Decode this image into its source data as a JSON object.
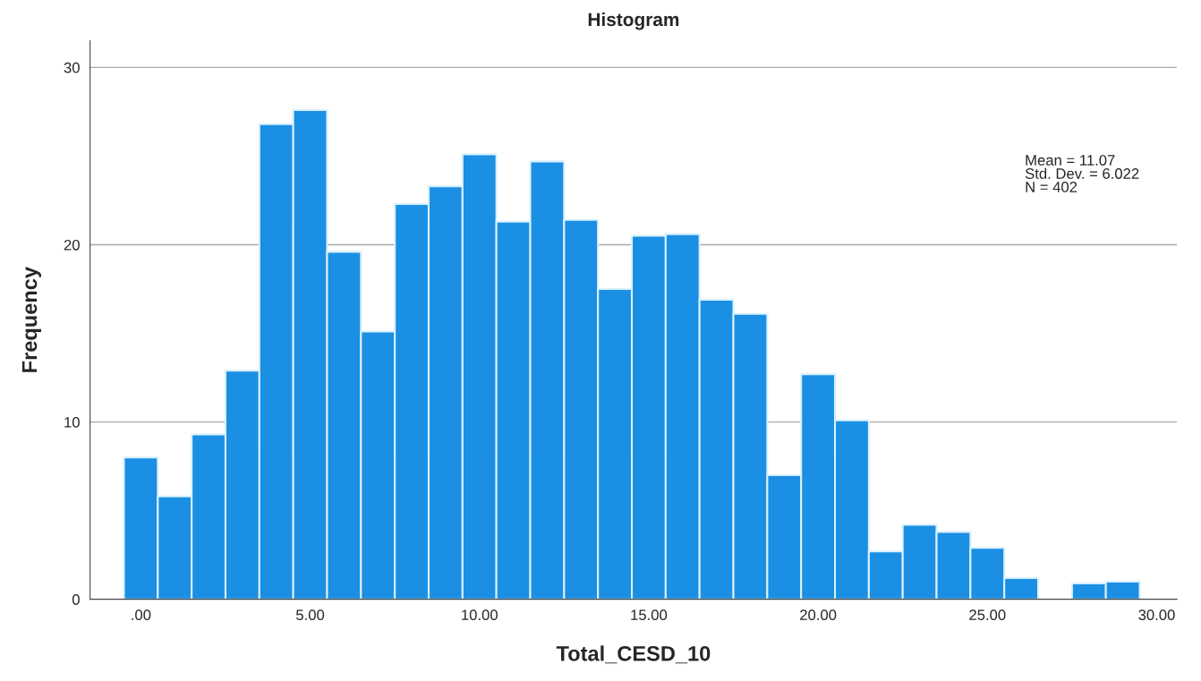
{
  "chart_data": {
    "type": "histogram",
    "title": "Histogram",
    "xlabel": "Total_CESD_10",
    "ylabel": "Frequency",
    "bins": [
      -0.5,
      0.5,
      1.5,
      2.5,
      3.5,
      4.5,
      5.5,
      6.5,
      7.5,
      8.5,
      9.5,
      10.5,
      11.5,
      12.5,
      13.5,
      14.5,
      15.5,
      16.5,
      17.5,
      18.5,
      19.5,
      20.5,
      21.5,
      22.5,
      23.5,
      24.5,
      25.5,
      26.5,
      27.5,
      28.5,
      29.5
    ],
    "values": [
      8.0,
      5.8,
      9.3,
      12.9,
      26.8,
      27.6,
      19.6,
      15.1,
      22.3,
      23.3,
      25.1,
      21.3,
      24.7,
      21.4,
      17.5,
      20.5,
      20.6,
      16.9,
      16.1,
      7.0,
      12.7,
      10.1,
      2.7,
      4.2,
      3.8,
      2.9,
      1.2,
      0,
      0.9,
      1.0
    ],
    "color": "#1a8fe3",
    "xlim": [
      -1.5,
      30.6
    ],
    "xticks": [
      {
        "value": 0,
        "label": ".00"
      },
      {
        "value": 5,
        "label": "5.00"
      },
      {
        "value": 10,
        "label": "10.00"
      },
      {
        "value": 15,
        "label": "15.00"
      },
      {
        "value": 20,
        "label": "20.00"
      },
      {
        "value": 25,
        "label": "25.00"
      },
      {
        "value": 30,
        "label": "30.00"
      }
    ],
    "ylim": [
      0,
      31.5
    ],
    "yticks": [
      0,
      10,
      20,
      30
    ],
    "grid": "y",
    "annotations": [
      "Mean = 11.07\nStd. Dev. = 6.022\nN = 402"
    ]
  }
}
